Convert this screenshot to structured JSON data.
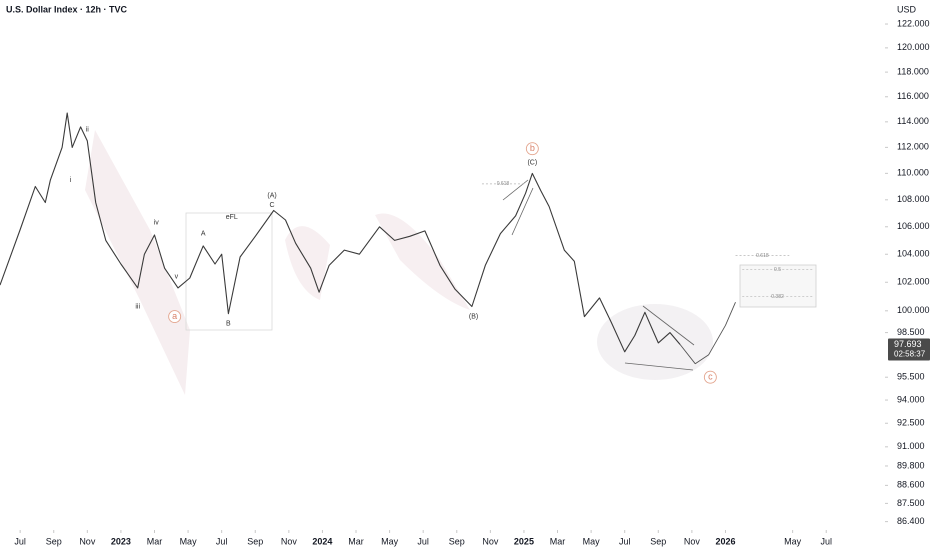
{
  "chart_data": {
    "type": "line",
    "title": "U.S. Dollar Index · 12h · TVC",
    "currency": "USD",
    "log_scale": true,
    "grid": false,
    "xlim": [
      -1.2,
      51.5
    ],
    "ylim": [
      85.9,
      124.05
    ],
    "xticks": [
      {
        "value": 0,
        "label": "Jul"
      },
      {
        "value": 2,
        "label": "Sep"
      },
      {
        "value": 4,
        "label": "Nov"
      },
      {
        "value": 6,
        "label": "2023"
      },
      {
        "value": 8,
        "label": "Mar"
      },
      {
        "value": 10,
        "label": "May"
      },
      {
        "value": 12,
        "label": "Jul"
      },
      {
        "value": 14,
        "label": "Sep"
      },
      {
        "value": 16,
        "label": "Nov"
      },
      {
        "value": 18,
        "label": "2024"
      },
      {
        "value": 20,
        "label": "Mar"
      },
      {
        "value": 22,
        "label": "May"
      },
      {
        "value": 24,
        "label": "Jul"
      },
      {
        "value": 26,
        "label": "Sep"
      },
      {
        "value": 28,
        "label": "Nov"
      },
      {
        "value": 30,
        "label": "2025"
      },
      {
        "value": 32,
        "label": "Mar"
      },
      {
        "value": 34,
        "label": "May"
      },
      {
        "value": 36,
        "label": "Jul"
      },
      {
        "value": 38,
        "label": "Sep"
      },
      {
        "value": 40,
        "label": "Nov"
      },
      {
        "value": 42,
        "label": "2026"
      },
      {
        "value": 46,
        "label": "May"
      },
      {
        "value": 48,
        "label": "Jul"
      }
    ],
    "yticks": [
      {
        "value": 122,
        "label": "122.000"
      },
      {
        "value": 120,
        "label": "120.000"
      },
      {
        "value": 118,
        "label": "118.000"
      },
      {
        "value": 116,
        "label": "116.000"
      },
      {
        "value": 114,
        "label": "114.000"
      },
      {
        "value": 112,
        "label": "112.000"
      },
      {
        "value": 110,
        "label": "110.000"
      },
      {
        "value": 108,
        "label": "108.000"
      },
      {
        "value": 106,
        "label": "106.000"
      },
      {
        "value": 104,
        "label": "104.000"
      },
      {
        "value": 102,
        "label": "102.000"
      },
      {
        "value": 100,
        "label": "100.000"
      },
      {
        "value": 98.5,
        "label": "98.500"
      },
      {
        "value": 95.5,
        "label": "95.500"
      },
      {
        "value": 94,
        "label": "94.000"
      },
      {
        "value": 92.5,
        "label": "92.500"
      },
      {
        "value": 91,
        "label": "91.000"
      },
      {
        "value": 89.8,
        "label": "89.800"
      },
      {
        "value": 88.6,
        "label": "88.600"
      },
      {
        "value": 87.5,
        "label": "87.500"
      },
      {
        "value": 86.4,
        "label": "86.400"
      }
    ],
    "series": [
      {
        "color": "#3a3a3a",
        "x": [
          -1.2,
          0,
          0.9,
          1.5,
          1.8,
          2.5,
          2.8,
          3.1,
          3.6,
          4.0,
          4.5,
          5.1,
          6.0,
          7.0,
          7.4,
          8.0,
          8.6,
          9.4,
          10.1,
          10.9,
          11.6,
          12.0,
          12.4,
          13.1,
          14.0,
          15.1,
          15.8,
          16.4,
          17.3,
          17.8,
          18.4,
          19.3,
          20.2,
          21.4,
          22.3,
          23.2,
          24.1,
          25.0,
          25.9,
          26.9,
          27.7,
          28.6,
          29.5,
          30.1,
          30.5,
          31.0,
          31.5,
          32.4,
          33.0,
          33.6,
          34.5,
          35.2,
          36.0,
          36.6,
          37.2,
          38.0,
          38.7,
          39.3
        ],
        "values": [
          101.8,
          105.8,
          109,
          107.8,
          109.5,
          112,
          114.7,
          112,
          113.6,
          112.5,
          107.8,
          105,
          103.3,
          101.6,
          104,
          105.4,
          103,
          101.6,
          102.3,
          104.6,
          103.3,
          104,
          99.8,
          103.8,
          105.3,
          107.2,
          106.5,
          104.8,
          103,
          101.3,
          103.2,
          104.3,
          104,
          106,
          105,
          105.3,
          105.7,
          103.2,
          101.5,
          100.3,
          103.2,
          105.5,
          106.8,
          108.5,
          110,
          108.7,
          107.5,
          104.3,
          103.5,
          99.6,
          100.9,
          99.2,
          97.2,
          98.3,
          99.9,
          97.8,
          98.5,
          97.693
        ]
      },
      {
        "color": "#555555",
        "x": [
          39.3,
          40.2,
          41.0,
          42.0,
          42.6
        ],
        "values": [
          97.693,
          96.4,
          97,
          99,
          100.6
        ]
      }
    ],
    "last_price": {
      "value": 97.693,
      "label": "97.693",
      "countdown": "02:58:37"
    },
    "annotations": [
      {
        "text": "i",
        "x": 3.0,
        "y": 109.5
      },
      {
        "text": "ii",
        "x": 4.0,
        "y": 113.4
      },
      {
        "text": "iii",
        "x": 7.0,
        "y": 100.3
      },
      {
        "text": "iv",
        "x": 8.1,
        "y": 106.3
      },
      {
        "text": "v",
        "x": 9.3,
        "y": 102.4
      },
      {
        "text": "a",
        "x": 9.2,
        "y": 99.6,
        "circled": true
      },
      {
        "text": "A",
        "x": 10.9,
        "y": 105.5
      },
      {
        "text": "B",
        "x": 12.4,
        "y": 99.1
      },
      {
        "text": "eFL",
        "x": 12.6,
        "y": 106.7
      },
      {
        "text": "C",
        "x": 15.0,
        "y": 107.6
      },
      {
        "text": "(A)",
        "x": 15.0,
        "y": 108.3
      },
      {
        "text": "(B)",
        "x": 27.0,
        "y": 99.6
      },
      {
        "text": "(C)",
        "x": 30.5,
        "y": 110.8
      },
      {
        "text": "b",
        "x": 30.5,
        "y": 111.9,
        "circled": true
      },
      {
        "text": "c",
        "x": 41.1,
        "y": 95.5,
        "circled": true
      }
    ],
    "fib_levels": [
      {
        "label": "0.618",
        "value": 109.2,
        "x0": 27.5,
        "x1": 30.0
      },
      {
        "label": "0.618",
        "value": 103.9,
        "x0": 42.6,
        "x1": 45.8
      },
      {
        "label": "0.5",
        "value": 102.9,
        "x0": 43.0,
        "x1": 47.2
      },
      {
        "label": "0.382",
        "value": 101.0,
        "x0": 43.0,
        "x1": 47.2
      }
    ]
  }
}
